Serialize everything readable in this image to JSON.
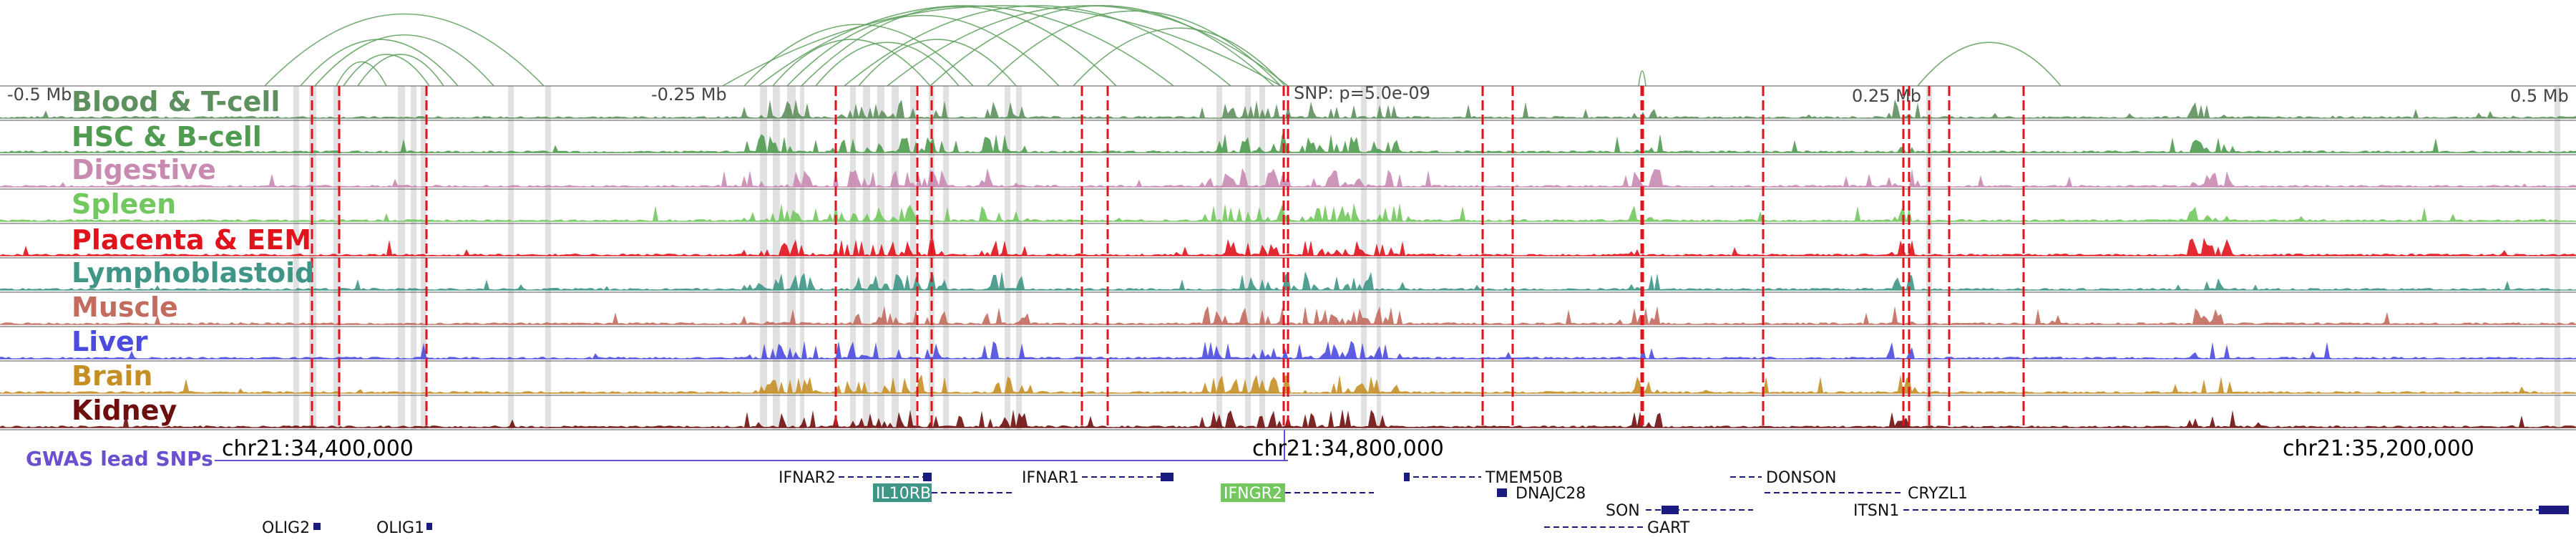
{
  "axis": {
    "left_label": "-0.5 Mb",
    "mid_left_label": "-0.25 Mb",
    "snp_label": "SNP: p=5.0e-09",
    "mid_right_label": "0.25 Mb",
    "right_label": "0.5 Mb"
  },
  "tracks": [
    {
      "label": "Blood & T-cell",
      "color": "#5e8f5e"
    },
    {
      "label": "HSC & B-cell",
      "color": "#4f9b4f"
    },
    {
      "label": "Digestive",
      "color": "#c98ab2"
    },
    {
      "label": "Spleen",
      "color": "#72c85e"
    },
    {
      "label": "Placenta & EEM",
      "color": "#e0121c"
    },
    {
      "label": "Lymphoblastoid",
      "color": "#3f9686"
    },
    {
      "label": "Muscle",
      "color": "#c26b5e"
    },
    {
      "label": "Liver",
      "color": "#4b4be0"
    },
    {
      "label": "Brain",
      "color": "#c58f26"
    },
    {
      "label": "Kidney",
      "color": "#6e0e0e"
    }
  ],
  "gwas_label": "GWAS lead SNPs",
  "coords": [
    "chr21:34,400,000",
    "chr21:34,800,000",
    "chr21:35,200,000"
  ],
  "genes": [
    {
      "name": "IFNAR2",
      "highlight": false
    },
    {
      "name": "IL10RB",
      "highlight": true,
      "highlight_color": "#3f9686"
    },
    {
      "name": "IFNAR1",
      "highlight": false
    },
    {
      "name": "IFNGR2",
      "highlight": true,
      "highlight_color": "#72c85e"
    },
    {
      "name": "TMEM50B",
      "highlight": false
    },
    {
      "name": "DNAJC28",
      "highlight": false
    },
    {
      "name": "SON",
      "highlight": false
    },
    {
      "name": "GART",
      "highlight": false
    },
    {
      "name": "DONSON",
      "highlight": false
    },
    {
      "name": "CRYZL1",
      "highlight": false
    },
    {
      "name": "ITSN1",
      "highlight": false
    },
    {
      "name": "OLIG2",
      "highlight": false
    },
    {
      "name": "OLIG1",
      "highlight": false
    }
  ],
  "colors": {
    "arc": "#5a9e5a",
    "gwas": "#e0121c",
    "gene": "#1a1a80",
    "gwas_label": "#6a4fcf",
    "highlight_band": "#d9d9d9"
  }
}
